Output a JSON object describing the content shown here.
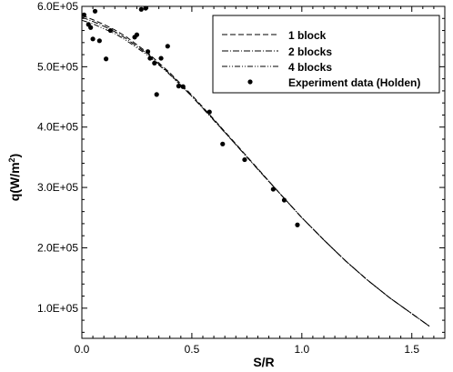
{
  "chart_data": {
    "type": "line",
    "xlabel": "S/R",
    "ylabel_main": "q(W/m",
    "ylabel_sup": "2",
    "ylabel_tail": ")",
    "xlim": [
      0,
      1.65
    ],
    "ylim": [
      50000,
      600000
    ],
    "xticks": [
      0,
      0.5,
      1,
      1.5
    ],
    "xtick_labels": [
      "0.0",
      "0.5",
      "1.0",
      "1.5"
    ],
    "yticks": [
      100000,
      200000,
      300000,
      400000,
      500000,
      600000
    ],
    "ytick_labels": [
      "1.0E+05",
      "2.0E+05",
      "3.0E+05",
      "4.0E+05",
      "5.0E+05",
      "6.0E+05"
    ],
    "grid": false,
    "legend_position": "top-right",
    "series": [
      {
        "name": "1 block",
        "style": "dashed",
        "points": [
          [
            0,
            585000
          ],
          [
            0.05,
            578000
          ],
          [
            0.1,
            570000
          ],
          [
            0.15,
            561000
          ],
          [
            0.2,
            550000
          ],
          [
            0.3,
            523000
          ],
          [
            0.4,
            490000
          ],
          [
            0.5,
            453000
          ],
          [
            0.6,
            413000
          ],
          [
            0.7,
            372000
          ],
          [
            0.8,
            331000
          ],
          [
            0.9,
            290000
          ],
          [
            1.0,
            250000
          ],
          [
            1.1,
            213000
          ],
          [
            1.2,
            178000
          ],
          [
            1.3,
            146000
          ],
          [
            1.4,
            117000
          ],
          [
            1.5,
            91000
          ],
          [
            1.58,
            70000
          ]
        ]
      },
      {
        "name": "2 blocks",
        "style": "dashdot",
        "points": [
          [
            0,
            582000
          ],
          [
            0.05,
            575000
          ],
          [
            0.1,
            567000
          ],
          [
            0.15,
            558000
          ],
          [
            0.2,
            547000
          ],
          [
            0.3,
            521000
          ],
          [
            0.4,
            488000
          ],
          [
            0.5,
            451000
          ],
          [
            0.6,
            412000
          ],
          [
            0.7,
            371000
          ],
          [
            0.8,
            330000
          ],
          [
            0.9,
            290000
          ],
          [
            1.0,
            250000
          ],
          [
            1.1,
            213000
          ],
          [
            1.2,
            178000
          ],
          [
            1.3,
            146000
          ],
          [
            1.4,
            117000
          ],
          [
            1.5,
            91000
          ],
          [
            1.58,
            70000
          ]
        ]
      },
      {
        "name": "4 blocks",
        "style": "dashdotdot",
        "points": [
          [
            0,
            577000
          ],
          [
            0.05,
            571000
          ],
          [
            0.1,
            563000
          ],
          [
            0.15,
            555000
          ],
          [
            0.2,
            544000
          ],
          [
            0.3,
            519000
          ],
          [
            0.4,
            487000
          ],
          [
            0.5,
            451000
          ],
          [
            0.6,
            411000
          ],
          [
            0.7,
            371000
          ],
          [
            0.8,
            330000
          ],
          [
            0.9,
            290000
          ],
          [
            1.0,
            250000
          ],
          [
            1.1,
            213000
          ],
          [
            1.2,
            178000
          ],
          [
            1.3,
            146000
          ],
          [
            1.4,
            117000
          ],
          [
            1.5,
            91000
          ],
          [
            1.58,
            70000
          ]
        ]
      },
      {
        "name": "Experiment data (Holden)",
        "style": "markers",
        "points": [
          [
            0.01,
            586000
          ],
          [
            0.03,
            570000
          ],
          [
            0.04,
            565000
          ],
          [
            0.05,
            546000
          ],
          [
            0.06,
            592000
          ],
          [
            0.08,
            543000
          ],
          [
            0.11,
            513000
          ],
          [
            0.13,
            560000
          ],
          [
            0.24,
            549000
          ],
          [
            0.25,
            553000
          ],
          [
            0.27,
            595000
          ],
          [
            0.29,
            597000
          ],
          [
            0.3,
            525000
          ],
          [
            0.31,
            514000
          ],
          [
            0.33,
            506000
          ],
          [
            0.34,
            454000
          ],
          [
            0.36,
            514000
          ],
          [
            0.39,
            534000
          ],
          [
            0.44,
            468000
          ],
          [
            0.46,
            467000
          ],
          [
            0.58,
            425000
          ],
          [
            0.64,
            372000
          ],
          [
            0.74,
            346000
          ],
          [
            0.87,
            297000
          ],
          [
            0.92,
            279000
          ],
          [
            0.98,
            238000
          ]
        ]
      }
    ]
  }
}
